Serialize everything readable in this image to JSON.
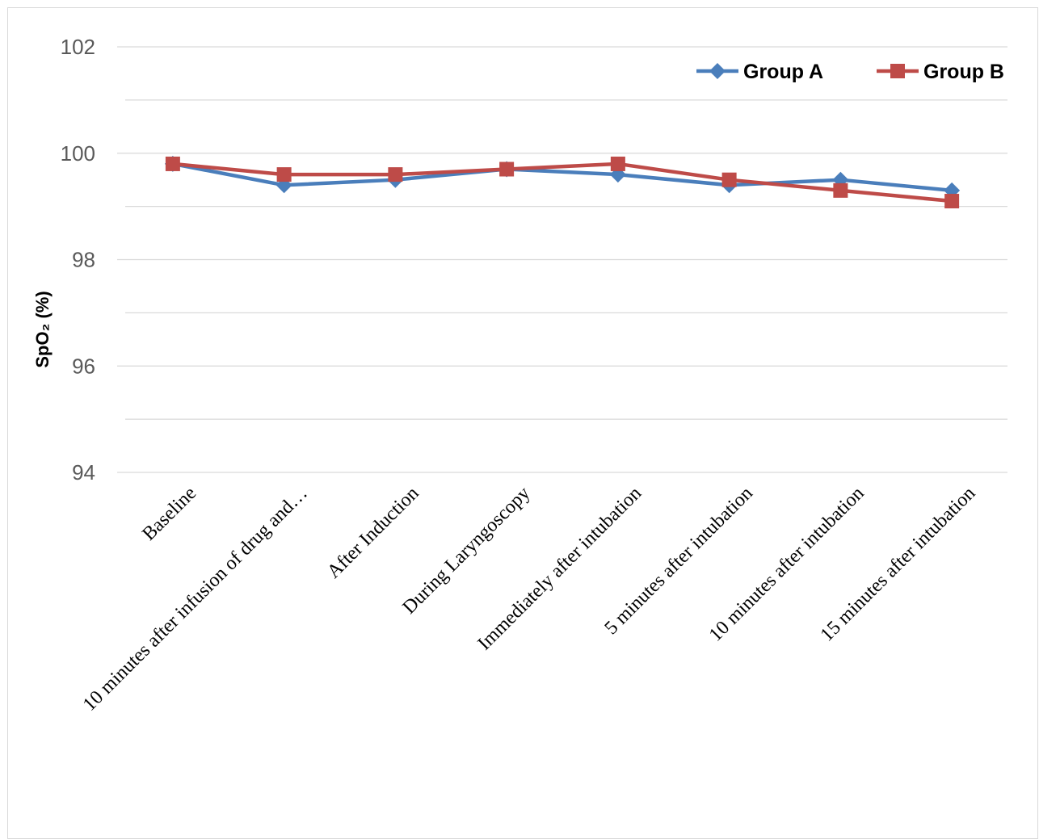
{
  "chart_data": {
    "type": "line",
    "title": "",
    "xlabel": "",
    "ylabel": "SpO₂ (%)",
    "ylim": [
      94,
      102
    ],
    "yticks_labeled": [
      "102",
      "100",
      "98",
      "96",
      "94"
    ],
    "categories": [
      "Baseline",
      "10 minutes after infusion of drug and…",
      "After Induction",
      "During Laryngoscopy",
      "Immediately after intubation",
      "5 minutes after intubation",
      "10 minutes after intubation",
      "15 minutes after intubation"
    ],
    "series": [
      {
        "name": "Group A",
        "color": "#4a7ebb",
        "marker": "diamond",
        "values": [
          99.8,
          99.4,
          99.5,
          99.7,
          99.6,
          99.4,
          99.5,
          99.3
        ]
      },
      {
        "name": "Group B",
        "color": "#be4b48",
        "marker": "square",
        "values": [
          99.8,
          99.6,
          99.6,
          99.7,
          99.8,
          99.5,
          99.3,
          99.1
        ]
      }
    ],
    "grid": true,
    "legend_position": "top-right"
  }
}
